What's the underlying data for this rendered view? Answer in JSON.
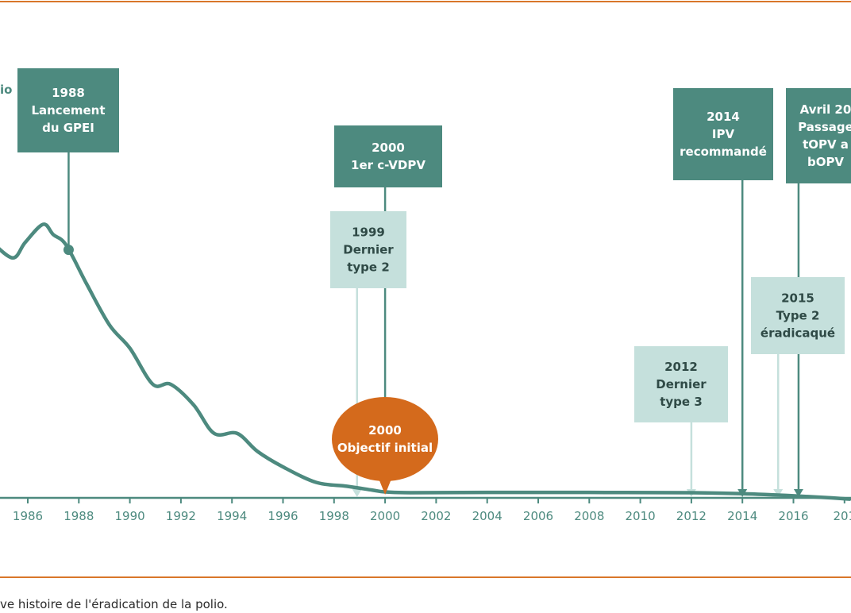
{
  "caption": "ve histoire de l'éradication de la polio.",
  "ylabel_fragment": "io",
  "colors": {
    "curve": "#4d8a7f",
    "box_dark": "#4d8a7f",
    "box_light": "#c5e0dc",
    "text_light_box": "#2f4a46",
    "milestone_orange": "#d46a1c",
    "rule": "#d9762a",
    "axis_text": "#4d8a7f"
  },
  "chart_data": {
    "type": "line",
    "title": "",
    "xlabel": "",
    "ylabel": "",
    "xlim": [
      1984.5,
      2018.2
    ],
    "ylim": [
      0,
      1.07
    ],
    "x_ticks": [
      "1986",
      "1988",
      "1990",
      "1992",
      "1994",
      "1996",
      "1998",
      "2000",
      "2002",
      "2004",
      "2006",
      "2008",
      "2010",
      "2012",
      "2014",
      "2016",
      "201"
    ],
    "series": [
      {
        "x": [
          1984.5,
          1985.4,
          1985.9,
          1986.6,
          1987.0,
          1987.5,
          1988.3,
          1989.2,
          1990.0,
          1990.9,
          1991.6,
          1992.5,
          1993.3,
          1994.2,
          1995.0,
          1996.0,
          1997.3,
          1998.5,
          1999.5,
          2000.0,
          2001.0,
          2004.0,
          2008.0,
          2012.0,
          2014.0,
          2016.0,
          2017.5,
          2018.2
        ],
        "values": [
          1.0,
          0.93,
          0.99,
          1.06,
          1.02,
          0.98,
          0.83,
          0.67,
          0.58,
          0.44,
          0.44,
          0.36,
          0.25,
          0.25,
          0.18,
          0.12,
          0.06,
          0.045,
          0.03,
          0.023,
          0.02,
          0.021,
          0.021,
          0.02,
          0.016,
          0.008,
          0.0,
          -0.005
        ]
      }
    ],
    "annotations": [
      {
        "year": 1987.6,
        "style": "dark",
        "lines": [
          "1988",
          "Lancement",
          "du GPEI"
        ],
        "target": "curve"
      },
      {
        "year": 2000.0,
        "style": "dark",
        "lines": [
          "2000",
          "1er c-VDPV"
        ],
        "target": "axis"
      },
      {
        "year": 1998.9,
        "style": "light",
        "lines": [
          "1999",
          "Dernier",
          "type 2"
        ],
        "target": "axis"
      },
      {
        "year": 2000.0,
        "style": "orange",
        "lines": [
          "2000",
          "Objectif initial"
        ],
        "target": "axis"
      },
      {
        "year": 2012.0,
        "style": "light",
        "lines": [
          "2012",
          "Dernier",
          "type 3"
        ],
        "target": "axis"
      },
      {
        "year": 2014.0,
        "style": "dark",
        "lines": [
          "2014",
          "IPV",
          "recommandé"
        ],
        "target": "axis"
      },
      {
        "year": 2015.4,
        "style": "light",
        "lines": [
          "2015",
          "Type 2",
          "éradicaqué"
        ],
        "target": "axis"
      },
      {
        "year": 2016.2,
        "style": "dark",
        "lines": [
          "Avril 20",
          "Passage",
          "tOPV a",
          "bOPV"
        ],
        "target": "axis"
      }
    ]
  }
}
